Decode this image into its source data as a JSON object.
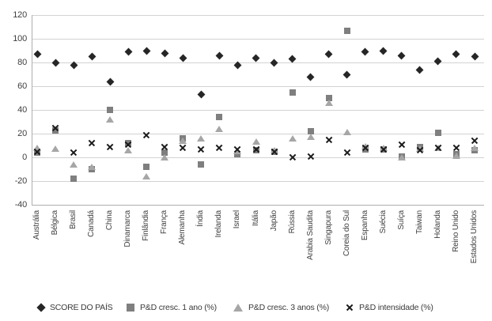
{
  "chart_data": {
    "type": "scatter",
    "title": "",
    "categories": [
      "Austrália",
      "Bélgica",
      "Brasil",
      "Canadá",
      "China",
      "Dinamarca",
      "Finlândia",
      "França",
      "Alemanha",
      "Índia",
      "Irelanda",
      "Israel",
      "Itália",
      "Japão",
      "Rússia",
      "Arabia Saudita",
      "Singapura",
      "Coreia do Sul",
      "Espanha",
      "Suécia",
      "Suíça",
      "Taiwan",
      "Holanda",
      "Reino Unido",
      "Estados Unidos"
    ],
    "series": [
      {
        "name": "SCORE DO PAÍS",
        "marker": "diamond",
        "color": "#262626",
        "values": [
          87,
          80,
          78,
          85,
          64,
          89,
          90,
          88,
          84,
          53,
          86,
          78,
          84,
          80,
          83,
          68,
          87,
          70,
          89,
          90,
          86,
          74,
          81,
          87,
          85
        ]
      },
      {
        "name": "P&D cresc. 1 ano (%)",
        "marker": "square",
        "color": "#7f7f7f",
        "values": [
          4,
          23,
          -18,
          -10,
          40,
          12,
          -8,
          4,
          16,
          -6,
          34,
          3,
          6,
          5,
          55,
          22,
          50,
          107,
          7,
          7,
          1,
          9,
          21,
          3,
          6
        ]
      },
      {
        "name": "P&D cresc. 3 anos (%)",
        "marker": "triangle",
        "color": "#a6a6a6",
        "values": [
          8,
          7,
          -6,
          -8,
          32,
          6,
          -16,
          0,
          14,
          16,
          24,
          5,
          13,
          6,
          16,
          17,
          46,
          21,
          9,
          8,
          0,
          7,
          8,
          1,
          8
        ]
      },
      {
        "name": "P&D intensidade (%)",
        "marker": "x",
        "color": "#1a1a1a",
        "values": [
          5,
          25,
          4,
          12,
          9,
          11,
          19,
          9,
          8,
          7,
          8,
          7,
          7,
          5,
          0,
          1,
          15,
          4,
          8,
          7,
          11,
          6,
          8,
          8,
          14
        ]
      }
    ],
    "y_axis": {
      "min": -40,
      "max": 120,
      "step": 20,
      "ticks": [
        120,
        100,
        80,
        60,
        40,
        20,
        0,
        -20,
        -40
      ]
    },
    "grid": true,
    "legend_position": "bottom",
    "colors": {
      "background": "#ffffff",
      "gridline": "#d2d2d2",
      "axis": "#aeaeae",
      "text": "#3f3f3f"
    }
  }
}
